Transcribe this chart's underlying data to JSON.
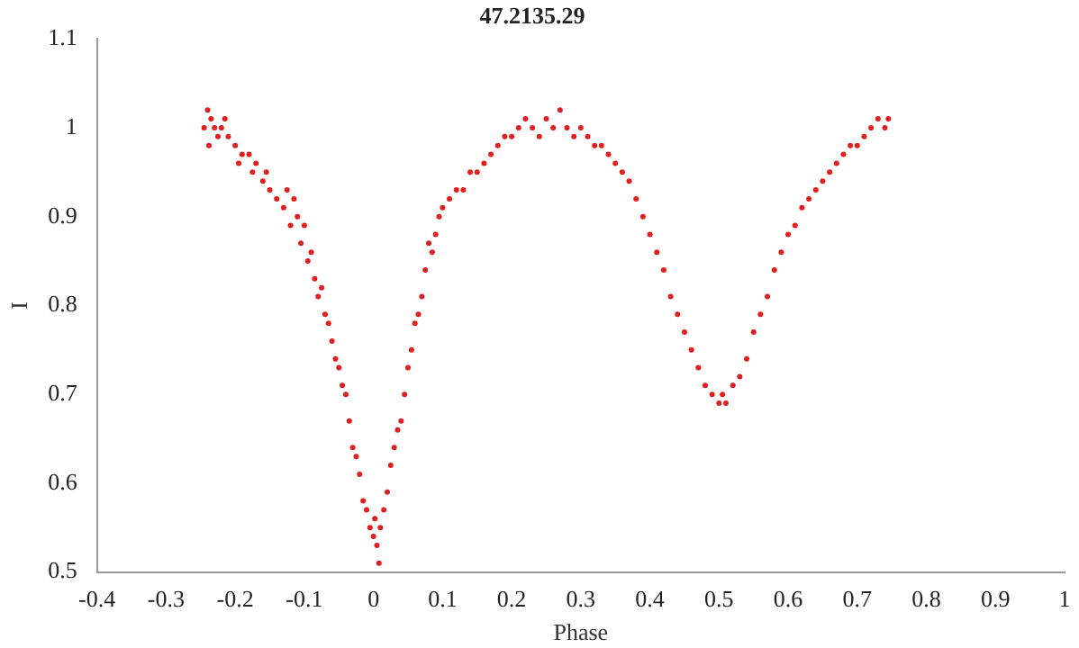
{
  "chart_data": {
    "type": "scatter",
    "title": "47.2135.29",
    "xlabel": "Phase",
    "ylabel": "I",
    "x": [
      -0.245,
      -0.24,
      -0.238,
      -0.235,
      -0.23,
      -0.225,
      -0.22,
      -0.215,
      -0.21,
      -0.2,
      -0.195,
      -0.19,
      -0.18,
      -0.175,
      -0.17,
      -0.16,
      -0.155,
      -0.15,
      -0.14,
      -0.13,
      -0.125,
      -0.12,
      -0.115,
      -0.11,
      -0.105,
      -0.1,
      -0.095,
      -0.09,
      -0.085,
      -0.08,
      -0.075,
      -0.07,
      -0.065,
      -0.06,
      -0.055,
      -0.05,
      -0.045,
      -0.04,
      -0.035,
      -0.03,
      -0.025,
      -0.02,
      -0.015,
      -0.01,
      -0.005,
      0,
      0.002,
      0.005,
      0.008,
      0.01,
      0.015,
      0.02,
      0.025,
      0.03,
      0.035,
      0.04,
      0.045,
      0.05,
      0.055,
      0.06,
      0.065,
      0.07,
      0.075,
      0.08,
      0.085,
      0.09,
      0.095,
      0.1,
      0.11,
      0.12,
      0.13,
      0.14,
      0.15,
      0.16,
      0.17,
      0.18,
      0.19,
      0.2,
      0.21,
      0.22,
      0.23,
      0.24,
      0.25,
      0.26,
      0.27,
      0.28,
      0.29,
      0.3,
      0.31,
      0.32,
      0.33,
      0.34,
      0.35,
      0.36,
      0.37,
      0.38,
      0.39,
      0.4,
      0.41,
      0.42,
      0.43,
      0.44,
      0.45,
      0.46,
      0.47,
      0.48,
      0.49,
      0.5,
      0.505,
      0.51,
      0.52,
      0.53,
      0.54,
      0.55,
      0.56,
      0.57,
      0.58,
      0.59,
      0.6,
      0.61,
      0.62,
      0.63,
      0.64,
      0.65,
      0.66,
      0.67,
      0.68,
      0.69,
      0.7,
      0.71,
      0.72,
      0.73,
      0.74,
      0.745
    ],
    "values": [
      1.0,
      1.02,
      0.98,
      1.01,
      1.0,
      0.99,
      1.0,
      1.01,
      0.99,
      0.98,
      0.96,
      0.97,
      0.97,
      0.95,
      0.96,
      0.94,
      0.95,
      0.93,
      0.92,
      0.91,
      0.93,
      0.89,
      0.92,
      0.9,
      0.87,
      0.89,
      0.85,
      0.86,
      0.83,
      0.81,
      0.82,
      0.79,
      0.78,
      0.76,
      0.74,
      0.73,
      0.71,
      0.7,
      0.67,
      0.64,
      0.63,
      0.61,
      0.58,
      0.57,
      0.55,
      0.54,
      0.56,
      0.53,
      0.51,
      0.55,
      0.57,
      0.59,
      0.62,
      0.64,
      0.66,
      0.67,
      0.7,
      0.73,
      0.75,
      0.78,
      0.79,
      0.81,
      0.84,
      0.87,
      0.86,
      0.88,
      0.9,
      0.91,
      0.92,
      0.93,
      0.93,
      0.95,
      0.95,
      0.96,
      0.97,
      0.98,
      0.99,
      0.99,
      1.0,
      1.01,
      1.0,
      0.99,
      1.01,
      1.0,
      1.02,
      1.0,
      0.99,
      1.0,
      0.99,
      0.98,
      0.98,
      0.97,
      0.96,
      0.95,
      0.94,
      0.92,
      0.9,
      0.88,
      0.86,
      0.84,
      0.81,
      0.79,
      0.77,
      0.75,
      0.73,
      0.71,
      0.7,
      0.69,
      0.7,
      0.69,
      0.71,
      0.72,
      0.74,
      0.77,
      0.79,
      0.81,
      0.84,
      0.86,
      0.88,
      0.89,
      0.91,
      0.92,
      0.93,
      0.94,
      0.95,
      0.96,
      0.97,
      0.98,
      0.98,
      0.99,
      1.0,
      1.01,
      1.0,
      1.01
    ],
    "color": "#e02020",
    "marker": "circle",
    "grid": false,
    "legend": false,
    "xlim": [
      -0.4,
      1
    ],
    "xticks": [
      -0.4,
      -0.3,
      -0.2,
      -0.1,
      0,
      0.1,
      0.2,
      0.3,
      0.4,
      0.5,
      0.6,
      0.7,
      0.8,
      0.9,
      1
    ],
    "ylim": [
      0.5,
      1.1
    ],
    "yticks": [
      0.5,
      0.6,
      0.7,
      0.8,
      0.9,
      1,
      1.1
    ]
  }
}
